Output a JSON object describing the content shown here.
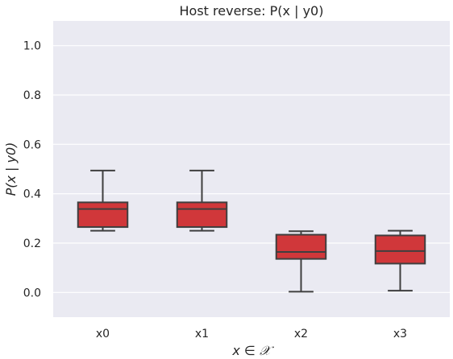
{
  "chart_data": {
    "type": "box",
    "title": "Host reverse: P(x | y0)",
    "xlabel": "x ∈ 𝒳",
    "ylabel": "P(x | y0)",
    "categories": [
      "x0",
      "x1",
      "x2",
      "x3"
    ],
    "ylim": [
      -0.1,
      1.1
    ],
    "yticks": [
      "0.0",
      "0.2",
      "0.4",
      "0.6",
      "0.8",
      "1.0"
    ],
    "boxes": [
      {
        "category": "x0",
        "whisker_low": 0.25,
        "q1": 0.265,
        "median": 0.338,
        "q3": 0.365,
        "whisker_high": 0.494
      },
      {
        "category": "x1",
        "whisker_low": 0.25,
        "q1": 0.265,
        "median": 0.338,
        "q3": 0.365,
        "whisker_high": 0.494
      },
      {
        "category": "x2",
        "whisker_low": 0.003,
        "q1": 0.136,
        "median": 0.164,
        "q3": 0.234,
        "whisker_high": 0.248
      },
      {
        "category": "x3",
        "whisker_low": 0.007,
        "q1": 0.117,
        "median": 0.168,
        "q3": 0.231,
        "whisker_high": 0.25
      }
    ],
    "box_color": "#d0373a",
    "line_color": "#3f3f3f",
    "background_color": "#eaeaf2",
    "grid": true
  }
}
